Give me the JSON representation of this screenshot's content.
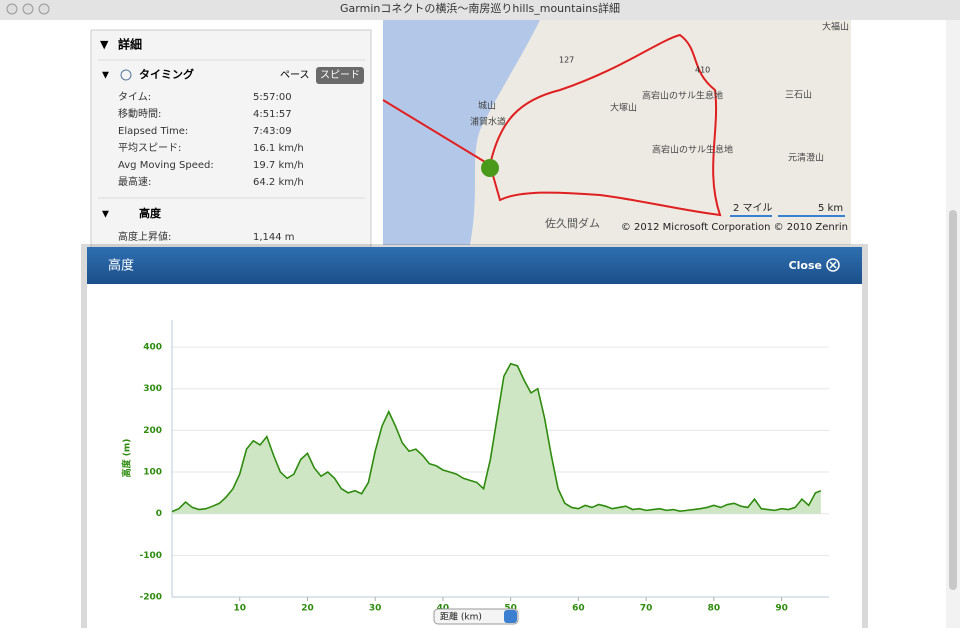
{
  "window": {
    "title": "Garminコネクトの横浜～南房巡りhills_mountains詳細"
  },
  "details": {
    "title": "詳細",
    "timing": {
      "title": "タイミング",
      "tabs": [
        "ペース",
        "スピード"
      ],
      "rows": [
        [
          "タイム:",
          "5:57:00"
        ],
        [
          "移動時間:",
          "4:51:57"
        ],
        [
          "Elapsed Time:",
          "7:43:09"
        ],
        [
          "平均スピード:",
          "16.1 km/h"
        ],
        [
          "Avg Moving Speed:",
          "19.7 km/h"
        ],
        [
          "最高速:",
          "64.2 km/h"
        ]
      ]
    },
    "elevation": {
      "title": "高度",
      "rows": [
        [
          "高度上昇値:",
          "1,144 m"
        ]
      ]
    }
  },
  "map": {
    "labels": [
      "浦賀水道",
      "城山",
      "大塚山",
      "高宕山のサル生息地",
      "高宕山のサル生息地",
      "三石山",
      "元清澄山",
      "佐久間ダム",
      "大福山",
      "127",
      "410"
    ],
    "scale": [
      "2 マイル",
      "5 km"
    ],
    "copyright": "© 2012 Microsoft Corporation   © 2010 Zenrin"
  },
  "modal": {
    "title": "高度",
    "close": "Close"
  },
  "chart_data": {
    "type": "area",
    "y_label": "高度 (m)",
    "x_label": "距離 (km)",
    "color": "#2e8b0e",
    "fill": "#cfe6c4",
    "x": [
      0,
      1,
      2,
      3,
      4,
      5,
      6,
      7,
      8,
      9,
      10,
      11,
      12,
      13,
      14,
      15,
      16,
      17,
      18,
      19,
      20,
      21,
      22,
      23,
      24,
      25,
      26,
      27,
      28,
      29,
      30,
      31,
      32,
      33,
      34,
      35,
      36,
      37,
      38,
      39,
      40,
      41,
      42,
      43,
      44,
      45,
      46,
      47,
      48,
      49,
      50,
      51,
      52,
      53,
      54,
      55,
      56,
      57,
      58,
      59,
      60,
      61,
      62,
      63,
      64,
      65,
      66,
      67,
      68,
      69,
      70,
      71,
      72,
      73,
      74,
      75,
      76,
      77,
      78,
      79,
      80,
      81,
      82,
      83,
      84,
      85,
      86,
      87,
      88,
      89,
      90,
      91,
      92,
      93,
      94,
      95,
      95.8
    ],
    "values": [
      5,
      12,
      28,
      15,
      10,
      12,
      18,
      25,
      40,
      60,
      95,
      155,
      175,
      165,
      185,
      140,
      100,
      85,
      95,
      130,
      145,
      110,
      90,
      100,
      85,
      60,
      50,
      55,
      48,
      75,
      150,
      210,
      245,
      210,
      170,
      150,
      155,
      140,
      120,
      115,
      105,
      100,
      95,
      85,
      80,
      75,
      60,
      130,
      230,
      330,
      360,
      355,
      320,
      290,
      300,
      230,
      140,
      60,
      25,
      15,
      12,
      20,
      15,
      22,
      18,
      12,
      15,
      18,
      10,
      12,
      8,
      10,
      12,
      8,
      10,
      6,
      8,
      10,
      12,
      15,
      20,
      15,
      22,
      25,
      18,
      15,
      35,
      12,
      10,
      8,
      12,
      10,
      15,
      35,
      20,
      50,
      55
    ],
    "xlim": [
      0,
      97
    ],
    "ylim": [
      -200,
      465
    ],
    "xticks": [
      10,
      20,
      30,
      40,
      50,
      60,
      70,
      80,
      90
    ],
    "yticks": [
      -200,
      -100,
      0,
      100,
      200,
      300,
      400
    ],
    "grid": true
  }
}
